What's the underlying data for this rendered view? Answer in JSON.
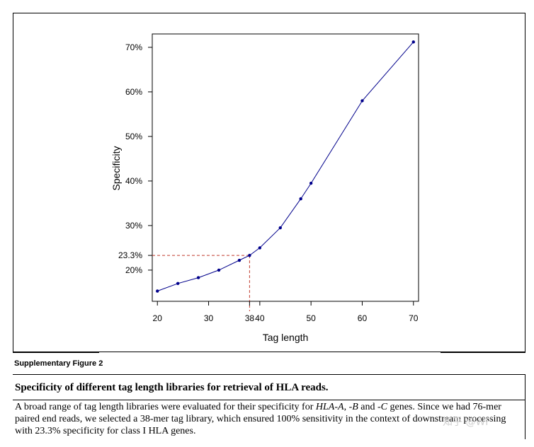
{
  "chart_data": {
    "type": "line",
    "title": "",
    "xlabel": "Tag length",
    "ylabel": "Specificity",
    "x": [
      20,
      24,
      28,
      32,
      36,
      38,
      40,
      44,
      48,
      50,
      60,
      70
    ],
    "y": [
      15.3,
      17.0,
      18.3,
      20.0,
      22.2,
      23.3,
      25.0,
      29.5,
      36.0,
      39.5,
      58.0,
      71.2
    ],
    "xlim": [
      19,
      71
    ],
    "ylim": [
      13,
      73
    ],
    "xticks": [
      20,
      30,
      38,
      40,
      50,
      60,
      70
    ],
    "xtick_labels": [
      "20",
      "30",
      "38",
      "40",
      "50",
      "60",
      "70"
    ],
    "yticks": [
      20,
      23.3,
      30,
      40,
      50,
      60,
      70
    ],
    "ytick_labels": [
      "20%",
      "23.3%",
      "30%",
      "40%",
      "50%",
      "60%",
      "70%"
    ],
    "highlight": {
      "x": 38,
      "y": 23.3
    },
    "colors": {
      "line": "#00008b",
      "point": "#00008b",
      "highlight": "#c0392b",
      "axis": "#000000"
    }
  },
  "caption": {
    "label": "Supplementary Figure 2",
    "title": "Specificity of different tag length libraries for retrieval of HLA reads.",
    "body_part1": "A broad range of tag length libraries were evaluated for their specificity for ",
    "gene_a": "HLA-A",
    "body_sep1": ", ",
    "gene_b": "-B",
    "body_sep2": " and ",
    "gene_c": "-C",
    "body_part2": " genes.  Since we had 76-mer paired end reads, we selected a 38-mer tag library, which ensured 100% sensitivity in the context of downstream processing with 23.3% specificity for class I HLA genes."
  },
  "watermark": {
    "text": "知乎 @WF"
  }
}
